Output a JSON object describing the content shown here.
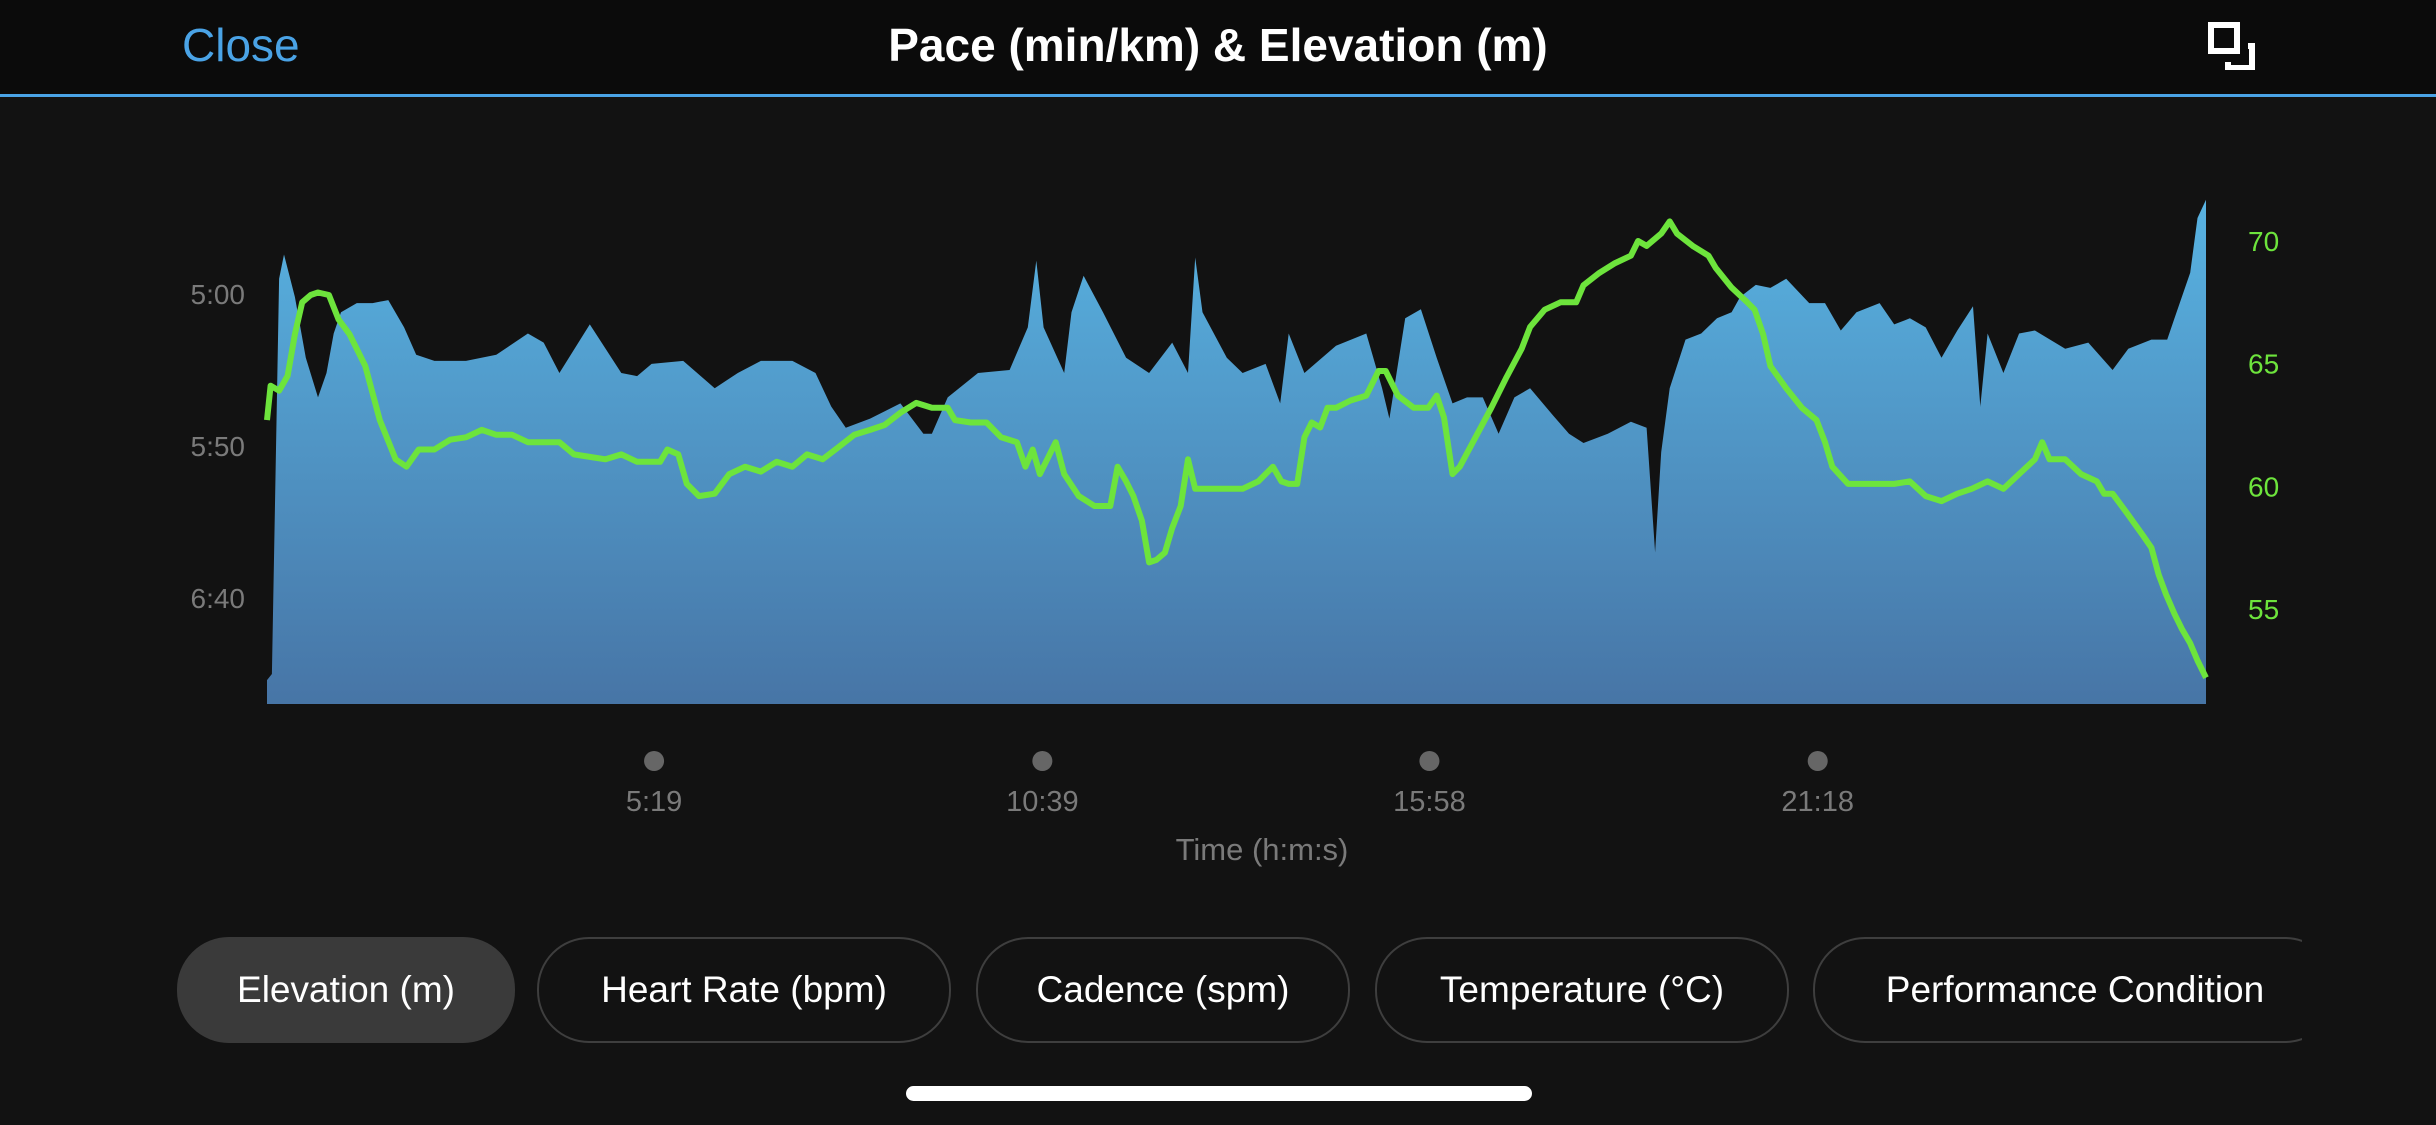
{
  "header": {
    "close_label": "Close",
    "title": "Pace (min/km) & Elevation (m)",
    "expand_icon": "expand-icon"
  },
  "pills": [
    {
      "label": "Elevation (m)",
      "active": true
    },
    {
      "label": "Heart Rate (bpm)",
      "active": false
    },
    {
      "label": "Cadence (spm)",
      "active": false
    },
    {
      "label": "Temperature (°C)",
      "active": false
    },
    {
      "label": "Performance Condition",
      "active": false
    }
  ],
  "colors": {
    "accent": "#4aa3e6",
    "pace_top": "#58b3e2",
    "pace_bottom": "#4775a6",
    "elevation": "#6de43c",
    "axis_text": "#7a7a7a"
  },
  "chart_data": {
    "type": "area",
    "title": "Pace (min/km) & Elevation (m)",
    "xlabel": "Time (h:m:s)",
    "x_ticks": [
      {
        "value": 319,
        "label": "5:19"
      },
      {
        "value": 639,
        "label": "10:39"
      },
      {
        "value": 958,
        "label": "15:58"
      },
      {
        "value": 1278,
        "label": "21:18"
      }
    ],
    "xlim": [
      0,
      1598
    ],
    "y_left": {
      "label": "Pace (min/km)",
      "inverted": true,
      "ticks": [
        {
          "value": 300,
          "label": "5:00"
        },
        {
          "value": 350,
          "label": "5:50"
        },
        {
          "value": 400,
          "label": "6:40"
        }
      ]
    },
    "y_right": {
      "label": "Elevation (m)",
      "ticks": [
        {
          "value": 70,
          "label": "70"
        },
        {
          "value": 65,
          "label": "65"
        },
        {
          "value": 60,
          "label": "60"
        },
        {
          "value": 55,
          "label": "55"
        }
      ]
    },
    "series": [
      {
        "name": "Pace",
        "axis": "left",
        "unit": "s/km",
        "x": [
          0,
          4,
          10,
          14,
          23,
          32,
          42,
          49,
          55,
          61,
          74,
          87,
          100,
          113,
          123,
          138,
          164,
          189,
          215,
          228,
          241,
          266,
          292,
          305,
          317,
          343,
          369,
          388,
          407,
          433,
          452,
          465,
          477,
          497,
          522,
          541,
          548,
          561,
          586,
          612,
          627,
          634,
          640,
          657,
          663,
          673,
          689,
          708,
          727,
          746,
          759,
          765,
          771,
          791,
          804,
          823,
          835,
          842,
          855,
          881,
          906,
          919,
          925,
          938,
          951,
          964,
          977,
          989,
          1002,
          1015,
          1028,
          1041,
          1060,
          1073,
          1085,
          1105,
          1124,
          1137,
          1144,
          1149,
          1156,
          1169,
          1182,
          1195,
          1207,
          1214,
          1227,
          1239,
          1252,
          1271,
          1284,
          1297,
          1310,
          1329,
          1341,
          1354,
          1367,
          1380,
          1393,
          1406,
          1412,
          1418,
          1431,
          1444,
          1457,
          1482,
          1501,
          1521,
          1534,
          1553,
          1566,
          1572,
          1585,
          1591,
          1598
        ],
        "values": [
          427,
          425,
          295,
          287,
          301,
          321,
          334,
          326,
          313,
          306,
          303,
          303,
          302,
          311,
          320,
          322,
          322,
          320,
          313,
          316,
          326,
          310,
          326,
          327,
          323,
          322,
          331,
          326,
          322,
          322,
          326,
          337,
          344,
          341,
          336,
          346,
          346,
          334,
          326,
          325,
          311,
          289,
          311,
          326,
          306,
          294,
          306,
          321,
          326,
          316,
          326,
          288,
          306,
          321,
          326,
          323,
          336,
          313,
          326,
          317,
          313,
          331,
          341,
          308,
          305,
          321,
          336,
          334,
          334,
          346,
          334,
          331,
          340,
          346,
          349,
          346,
          342,
          344,
          385,
          352,
          331,
          315,
          313,
          308,
          306,
          301,
          297,
          298,
          295,
          303,
          303,
          312,
          306,
          303,
          310,
          308,
          311,
          321,
          312,
          304,
          337,
          313,
          326,
          313,
          312,
          318,
          316,
          325,
          318,
          315,
          315,
          308,
          293,
          275,
          269
        ]
      },
      {
        "name": "Elevation",
        "axis": "right",
        "unit": "m",
        "x": [
          0,
          3,
          10,
          17,
          23,
          29,
          36,
          42,
          51,
          59,
          68,
          81,
          93,
          106,
          115,
          125,
          138,
          151,
          164,
          177,
          189,
          202,
          215,
          228,
          241,
          253,
          266,
          279,
          292,
          305,
          324,
          330,
          339,
          346,
          356,
          369,
          381,
          394,
          407,
          420,
          433,
          445,
          458,
          471,
          484,
          497,
          509,
          522,
          535,
          548,
          561,
          567,
          580,
          593,
          605,
          618,
          625,
          631,
          637,
          650,
          657,
          669,
          682,
          695,
          701,
          708,
          714,
          721,
          727,
          733,
          740,
          746,
          753,
          759,
          765,
          778,
          791,
          804,
          817,
          829,
          836,
          842,
          849,
          855,
          861,
          868,
          874,
          881,
          893,
          906,
          916,
          922,
          932,
          945,
          957,
          964,
          970,
          977,
          983,
          996,
          1009,
          1021,
          1034,
          1041,
          1053,
          1066,
          1079,
          1085,
          1098,
          1111,
          1124,
          1130,
          1137,
          1149,
          1156,
          1162,
          1175,
          1188,
          1194,
          1207,
          1220,
          1226,
          1233,
          1239,
          1252,
          1265,
          1277,
          1284,
          1290,
          1303,
          1316,
          1329,
          1341,
          1354,
          1367,
          1380,
          1393,
          1405,
          1418,
          1431,
          1444,
          1457,
          1463,
          1469,
          1482,
          1495,
          1508,
          1514,
          1521,
          1533,
          1546,
          1553,
          1559,
          1565,
          1572,
          1578,
          1585,
          1591,
          1598
        ],
        "values": [
          62.7,
          64.1,
          63.9,
          64.5,
          66.2,
          67.5,
          67.8,
          67.9,
          67.8,
          66.8,
          66.2,
          64.9,
          62.7,
          61.1,
          60.8,
          61.5,
          61.5,
          61.9,
          62.0,
          62.3,
          62.1,
          62.1,
          61.8,
          61.8,
          61.8,
          61.3,
          61.2,
          61.1,
          61.3,
          61.0,
          61.0,
          61.5,
          61.3,
          60.1,
          59.6,
          59.7,
          60.5,
          60.8,
          60.6,
          61.0,
          60.8,
          61.3,
          61.1,
          61.6,
          62.1,
          62.3,
          62.5,
          63.0,
          63.4,
          63.2,
          63.2,
          62.7,
          62.6,
          62.6,
          62.0,
          61.8,
          60.8,
          61.5,
          60.5,
          61.8,
          60.5,
          59.6,
          59.2,
          59.2,
          60.8,
          60.2,
          59.6,
          58.6,
          56.9,
          57.0,
          57.3,
          58.3,
          59.2,
          61.1,
          59.9,
          59.9,
          59.9,
          59.9,
          60.2,
          60.8,
          60.2,
          60.1,
          60.1,
          62.0,
          62.6,
          62.4,
          63.2,
          63.2,
          63.5,
          63.7,
          64.7,
          64.7,
          63.7,
          63.2,
          63.2,
          63.7,
          62.8,
          60.5,
          60.8,
          62.0,
          63.2,
          64.4,
          65.6,
          66.5,
          67.2,
          67.5,
          67.5,
          68.2,
          68.7,
          69.1,
          69.4,
          70.0,
          69.8,
          70.3,
          70.8,
          70.3,
          69.8,
          69.4,
          68.9,
          68.1,
          67.5,
          67.2,
          66.2,
          64.9,
          64.0,
          63.2,
          62.7,
          61.8,
          60.8,
          60.1,
          60.1,
          60.1,
          60.1,
          60.2,
          59.6,
          59.4,
          59.7,
          59.9,
          60.2,
          59.9,
          60.5,
          61.1,
          61.8,
          61.1,
          61.1,
          60.5,
          60.2,
          59.7,
          59.7,
          58.9,
          58.0,
          57.5,
          56.4,
          55.6,
          54.8,
          54.2,
          53.6,
          52.9,
          52.2
        ]
      }
    ]
  }
}
